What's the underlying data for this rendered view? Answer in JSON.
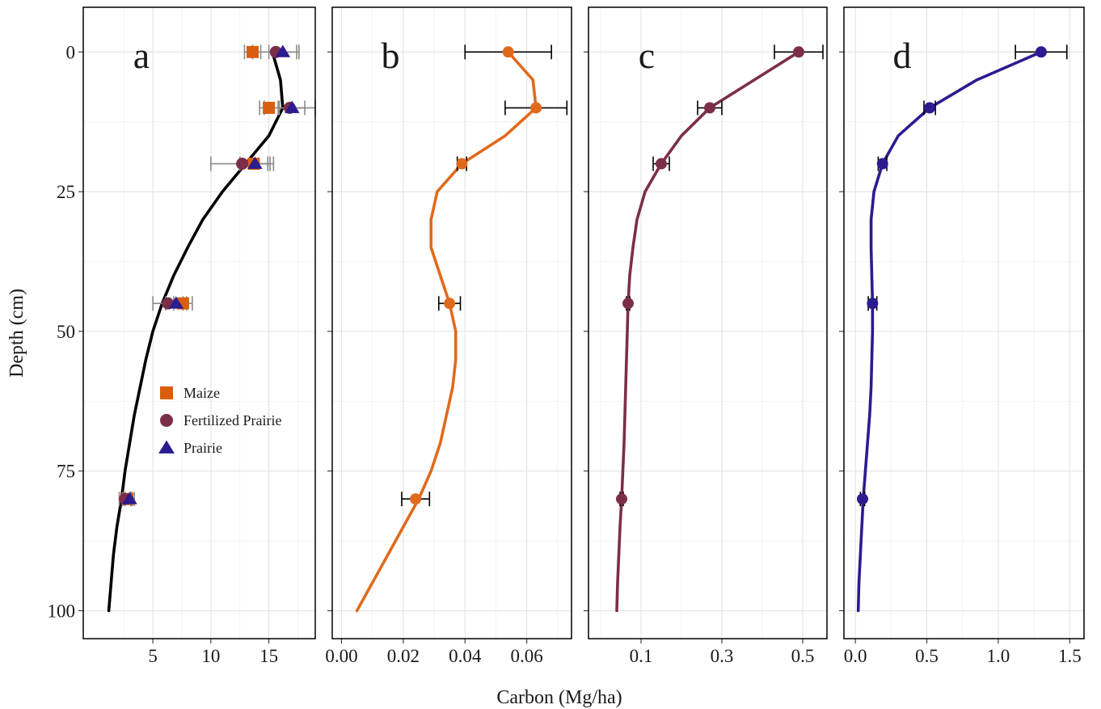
{
  "chart_data": {
    "type": "line",
    "xlabel": "Carbon (Mg/ha)",
    "ylabel": "Depth (cm)",
    "y_axis": {
      "reversed": true,
      "ylim": [
        -8,
        105
      ],
      "ticks": [
        0,
        25,
        50,
        75,
        100
      ],
      "tick_labels": [
        "0",
        "25",
        "50",
        "75",
        "100"
      ]
    },
    "grid": true,
    "legend": {
      "placement": "inside-left-lower of panel a",
      "entries": [
        {
          "name": "Maize",
          "shape": "square",
          "color": "#d95f0e"
        },
        {
          "name": "Fertilized Prairie",
          "shape": "circle",
          "color": "#7b2e4a"
        },
        {
          "name": "Prairie",
          "shape": "triangle",
          "color": "#2b1c8f"
        }
      ]
    },
    "panels": [
      {
        "label": "a",
        "xlim": [
          -1.0,
          19.0
        ],
        "x_ticks": [
          5,
          10,
          15
        ],
        "x_tick_labels": [
          "5",
          "10",
          "15"
        ],
        "curve": {
          "color": "#000000",
          "points": [
            [
              15.3,
              0
            ],
            [
              16.0,
              5
            ],
            [
              16.2,
              10
            ],
            [
              15.0,
              15
            ],
            [
              13.0,
              20
            ],
            [
              11.0,
              25
            ],
            [
              9.3,
              30
            ],
            [
              8.0,
              35
            ],
            [
              6.8,
              40
            ],
            [
              5.8,
              45
            ],
            [
              5.0,
              50
            ],
            [
              4.4,
              55
            ],
            [
              3.9,
              60
            ],
            [
              3.4,
              65
            ],
            [
              3.0,
              70
            ],
            [
              2.6,
              75
            ],
            [
              2.3,
              80
            ],
            [
              1.9,
              85
            ],
            [
              1.6,
              90
            ],
            [
              1.4,
              95
            ],
            [
              1.2,
              100
            ]
          ]
        },
        "series": [
          {
            "name": "Maize",
            "shape": "square",
            "color": "#d95f0e",
            "points": [
              {
                "depth": 0,
                "x": 13.6,
                "err": 0.7
              },
              {
                "depth": 10,
                "x": 15.0,
                "err": 0.8
              },
              {
                "depth": 20,
                "x": 13.7,
                "err": 1.2
              },
              {
                "depth": 45,
                "x": 7.6,
                "err": 0.8
              },
              {
                "depth": 80,
                "x": 2.8,
                "err": 0.4
              }
            ]
          },
          {
            "name": "Fertilized Prairie",
            "shape": "circle",
            "color": "#7b2e4a",
            "points": [
              {
                "depth": 0,
                "x": 15.6,
                "err": 2.0
              },
              {
                "depth": 10,
                "x": 16.8,
                "err": 2.2
              },
              {
                "depth": 20,
                "x": 12.7,
                "err": 2.7
              },
              {
                "depth": 45,
                "x": 6.3,
                "err": 1.3
              },
              {
                "depth": 80,
                "x": 2.6,
                "err": 0.5
              }
            ]
          },
          {
            "name": "Prairie",
            "shape": "triangle",
            "color": "#2b1c8f",
            "points": [
              {
                "depth": 0,
                "x": 16.2,
                "err": 1.2
              },
              {
                "depth": 10,
                "x": 17.0,
                "err": 1.1
              },
              {
                "depth": 20,
                "x": 13.8,
                "err": 1.3
              },
              {
                "depth": 45,
                "x": 7.0,
                "err": 0.9
              },
              {
                "depth": 80,
                "x": 3.0,
                "err": 0.4
              }
            ]
          }
        ]
      },
      {
        "label": "b",
        "xlim": [
          -0.003,
          0.0745
        ],
        "x_ticks": [
          0.0,
          0.02,
          0.04,
          0.06
        ],
        "x_tick_labels": [
          "0.00",
          "0.02",
          "0.04",
          "0.06"
        ],
        "curve": {
          "color": "#e06a1b",
          "points": [
            [
              0.054,
              0
            ],
            [
              0.062,
              5
            ],
            [
              0.063,
              10
            ],
            [
              0.053,
              15
            ],
            [
              0.039,
              20
            ],
            [
              0.031,
              25
            ],
            [
              0.029,
              30
            ],
            [
              0.029,
              35
            ],
            [
              0.032,
              40
            ],
            [
              0.035,
              45
            ],
            [
              0.037,
              50
            ],
            [
              0.037,
              55
            ],
            [
              0.036,
              60
            ],
            [
              0.034,
              65
            ],
            [
              0.032,
              70
            ],
            [
              0.029,
              75
            ],
            [
              0.025,
              80
            ],
            [
              0.02,
              85
            ],
            [
              0.015,
              90
            ],
            [
              0.01,
              95
            ],
            [
              0.005,
              100
            ]
          ]
        },
        "points": [
          {
            "depth": 0,
            "x": 0.054,
            "err": 0.014
          },
          {
            "depth": 10,
            "x": 0.063,
            "err": 0.01
          },
          {
            "depth": 20,
            "x": 0.039,
            "err": 0.0015
          },
          {
            "depth": 45,
            "x": 0.035,
            "err": 0.0035
          },
          {
            "depth": 80,
            "x": 0.024,
            "err": 0.0045
          }
        ]
      },
      {
        "label": "c",
        "xlim": [
          -0.03,
          0.56
        ],
        "x_ticks": [
          0.1,
          0.3,
          0.5
        ],
        "x_tick_labels": [
          "0.1",
          "0.3",
          "0.5"
        ],
        "curve": {
          "color": "#7b2e4a",
          "points": [
            [
              0.49,
              0
            ],
            [
              0.38,
              5
            ],
            [
              0.27,
              10
            ],
            [
              0.2,
              15
            ],
            [
              0.15,
              20
            ],
            [
              0.11,
              25
            ],
            [
              0.09,
              30
            ],
            [
              0.08,
              35
            ],
            [
              0.072,
              40
            ],
            [
              0.068,
              45
            ],
            [
              0.066,
              50
            ],
            [
              0.064,
              55
            ],
            [
              0.062,
              60
            ],
            [
              0.06,
              65
            ],
            [
              0.058,
              70
            ],
            [
              0.055,
              75
            ],
            [
              0.052,
              80
            ],
            [
              0.048,
              85
            ],
            [
              0.045,
              90
            ],
            [
              0.042,
              95
            ],
            [
              0.04,
              100
            ]
          ]
        },
        "points": [
          {
            "depth": 0,
            "x": 0.49,
            "err": 0.06
          },
          {
            "depth": 10,
            "x": 0.27,
            "err": 0.03
          },
          {
            "depth": 20,
            "x": 0.15,
            "err": 0.02
          },
          {
            "depth": 45,
            "x": 0.068,
            "err": 0.004
          },
          {
            "depth": 80,
            "x": 0.052,
            "err": 0.004
          }
        ]
      },
      {
        "label": "d",
        "xlim": [
          -0.08,
          1.6
        ],
        "x_ticks": [
          0.0,
          0.5,
          1.0,
          1.5
        ],
        "x_tick_labels": [
          "0.0",
          "0.5",
          "1.0",
          "1.5"
        ],
        "curve": {
          "color": "#2b1c8f",
          "points": [
            [
              1.3,
              0
            ],
            [
              0.85,
              5
            ],
            [
              0.52,
              10
            ],
            [
              0.3,
              15
            ],
            [
              0.19,
              20
            ],
            [
              0.13,
              25
            ],
            [
              0.11,
              30
            ],
            [
              0.11,
              35
            ],
            [
              0.115,
              40
            ],
            [
              0.12,
              45
            ],
            [
              0.12,
              50
            ],
            [
              0.115,
              55
            ],
            [
              0.11,
              60
            ],
            [
              0.1,
              65
            ],
            [
              0.085,
              70
            ],
            [
              0.07,
              75
            ],
            [
              0.055,
              80
            ],
            [
              0.045,
              85
            ],
            [
              0.035,
              90
            ],
            [
              0.025,
              95
            ],
            [
              0.02,
              100
            ]
          ]
        },
        "points": [
          {
            "depth": 0,
            "x": 1.3,
            "err": 0.18
          },
          {
            "depth": 10,
            "x": 0.52,
            "err": 0.04
          },
          {
            "depth": 20,
            "x": 0.19,
            "err": 0.03
          },
          {
            "depth": 45,
            "x": 0.12,
            "err": 0.03
          },
          {
            "depth": 80,
            "x": 0.05,
            "err": 0.015
          }
        ]
      }
    ]
  }
}
